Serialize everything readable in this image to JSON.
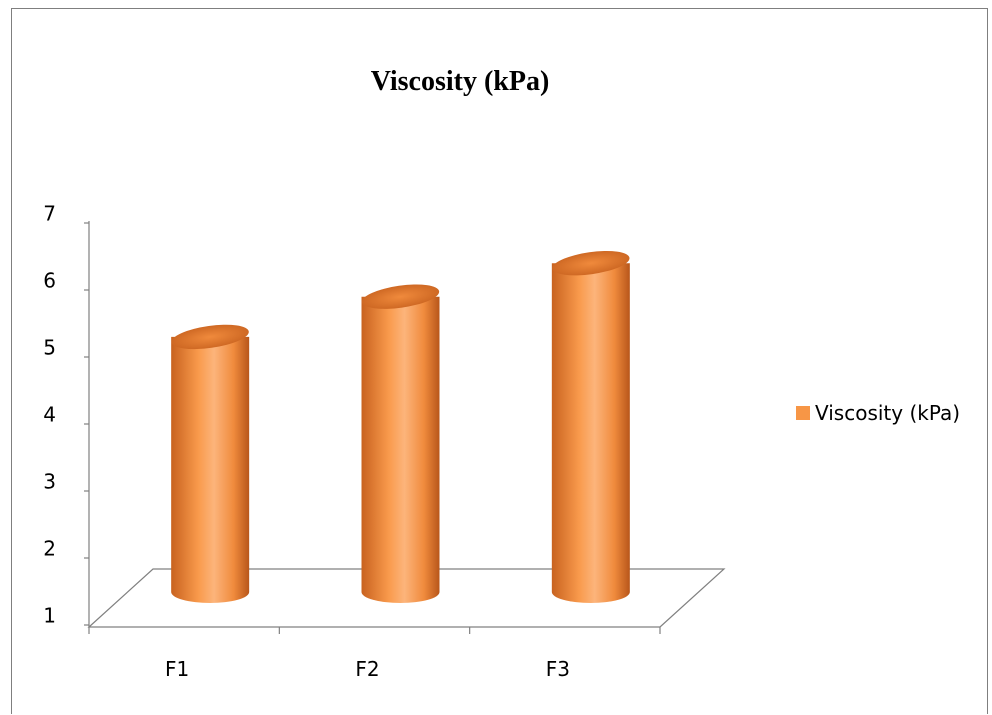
{
  "chart_data": {
    "type": "bar",
    "title": "Viscosity (kPa)",
    "categories": [
      "F1",
      "F2",
      "F3"
    ],
    "series": [
      {
        "name": "Viscosity (kPa)",
        "values": [
          5.3,
          5.9,
          6.4
        ]
      }
    ],
    "y_ticks": [
      "1",
      "2",
      "3",
      "4",
      "5",
      "6",
      "7"
    ],
    "ylim": [
      1,
      7
    ],
    "grid": false,
    "legend_position": "right",
    "colors": {
      "bar_body": "#f79646",
      "bar_dark": "#c6601f",
      "bar_light": "#fbb37a",
      "axis": "#808080"
    }
  }
}
